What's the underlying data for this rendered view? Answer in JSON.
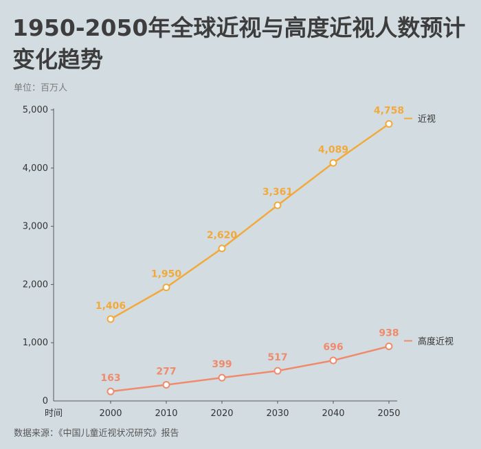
{
  "title": "1950-2050年全球近视与高度近视人数预计变化趋势",
  "unit_label": "单位：百万人",
  "source": "数据来源：《中国儿童近视状况研究》报告",
  "chart_data": {
    "type": "line",
    "title": "1950-2050年全球近视与高度近视人数预计变化趋势",
    "xlabel": "时间",
    "ylabel": "单位：百万人",
    "x": [
      "2000",
      "2010",
      "2020",
      "2030",
      "2040",
      "2050"
    ],
    "ylim": [
      0,
      5000
    ],
    "y_ticks": [
      "0",
      "1,000",
      "2,000",
      "3,000",
      "4,000",
      "5,000"
    ],
    "legend": "right, at line ends",
    "grid": false,
    "series": [
      {
        "name": "近视",
        "color": "#f2a93b",
        "values": [
          1406,
          1950,
          2620,
          3361,
          4089,
          4758
        ],
        "labels": [
          "1,406",
          "1,950",
          "2,620",
          "3,361",
          "4,089",
          "4,758"
        ]
      },
      {
        "name": "高度近视",
        "color": "#ef8a6c",
        "values": [
          163,
          277,
          399,
          517,
          696,
          938
        ],
        "labels": [
          "163",
          "277",
          "399",
          "517",
          "696",
          "938"
        ]
      }
    ]
  }
}
